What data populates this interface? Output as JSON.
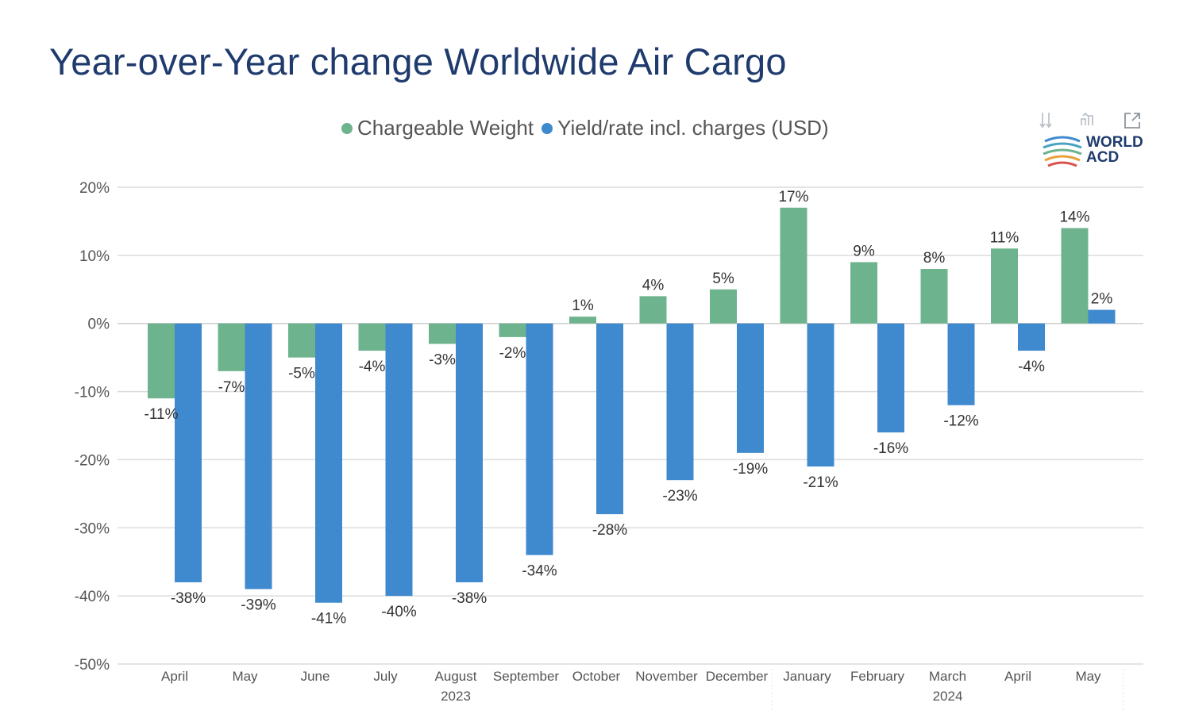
{
  "title": "Year-over-Year change Worldwide Air Cargo",
  "legend": {
    "items": [
      {
        "label": "Chargeable Weight",
        "color": "#6db38e"
      },
      {
        "label": "Yield/rate incl. charges (USD)",
        "color": "#3f89cf"
      }
    ]
  },
  "logo": {
    "line1": "WORLD",
    "line2": "ACD"
  },
  "toolbar": {
    "icons": [
      "download-icon",
      "filter-icon",
      "expand-icon"
    ]
  },
  "chart_data": {
    "type": "bar",
    "categories": [
      "April",
      "May",
      "June",
      "July",
      "August",
      "September",
      "October",
      "November",
      "December",
      "January",
      "February",
      "March",
      "April",
      "May"
    ],
    "year_groups": [
      {
        "label": "2023",
        "start": 0,
        "end": 8
      },
      {
        "label": "2024",
        "start": 9,
        "end": 13
      }
    ],
    "series": [
      {
        "name": "Chargeable Weight",
        "color": "#6db38e",
        "values": [
          -11,
          -7,
          -5,
          -4,
          -3,
          -2,
          1,
          4,
          5,
          17,
          9,
          8,
          11,
          14
        ]
      },
      {
        "name": "Yield/rate incl. charges (USD)",
        "color": "#3f89cf",
        "values": [
          -38,
          -39,
          -41,
          -40,
          -38,
          -34,
          -28,
          -23,
          -19,
          -21,
          -16,
          -12,
          -4,
          2
        ]
      }
    ],
    "ylim": [
      -50,
      20
    ],
    "yticks": [
      20,
      10,
      0,
      -10,
      -20,
      -30,
      -40,
      -50
    ],
    "ytick_format": "%",
    "grid": true,
    "legend_position": "top-center"
  }
}
